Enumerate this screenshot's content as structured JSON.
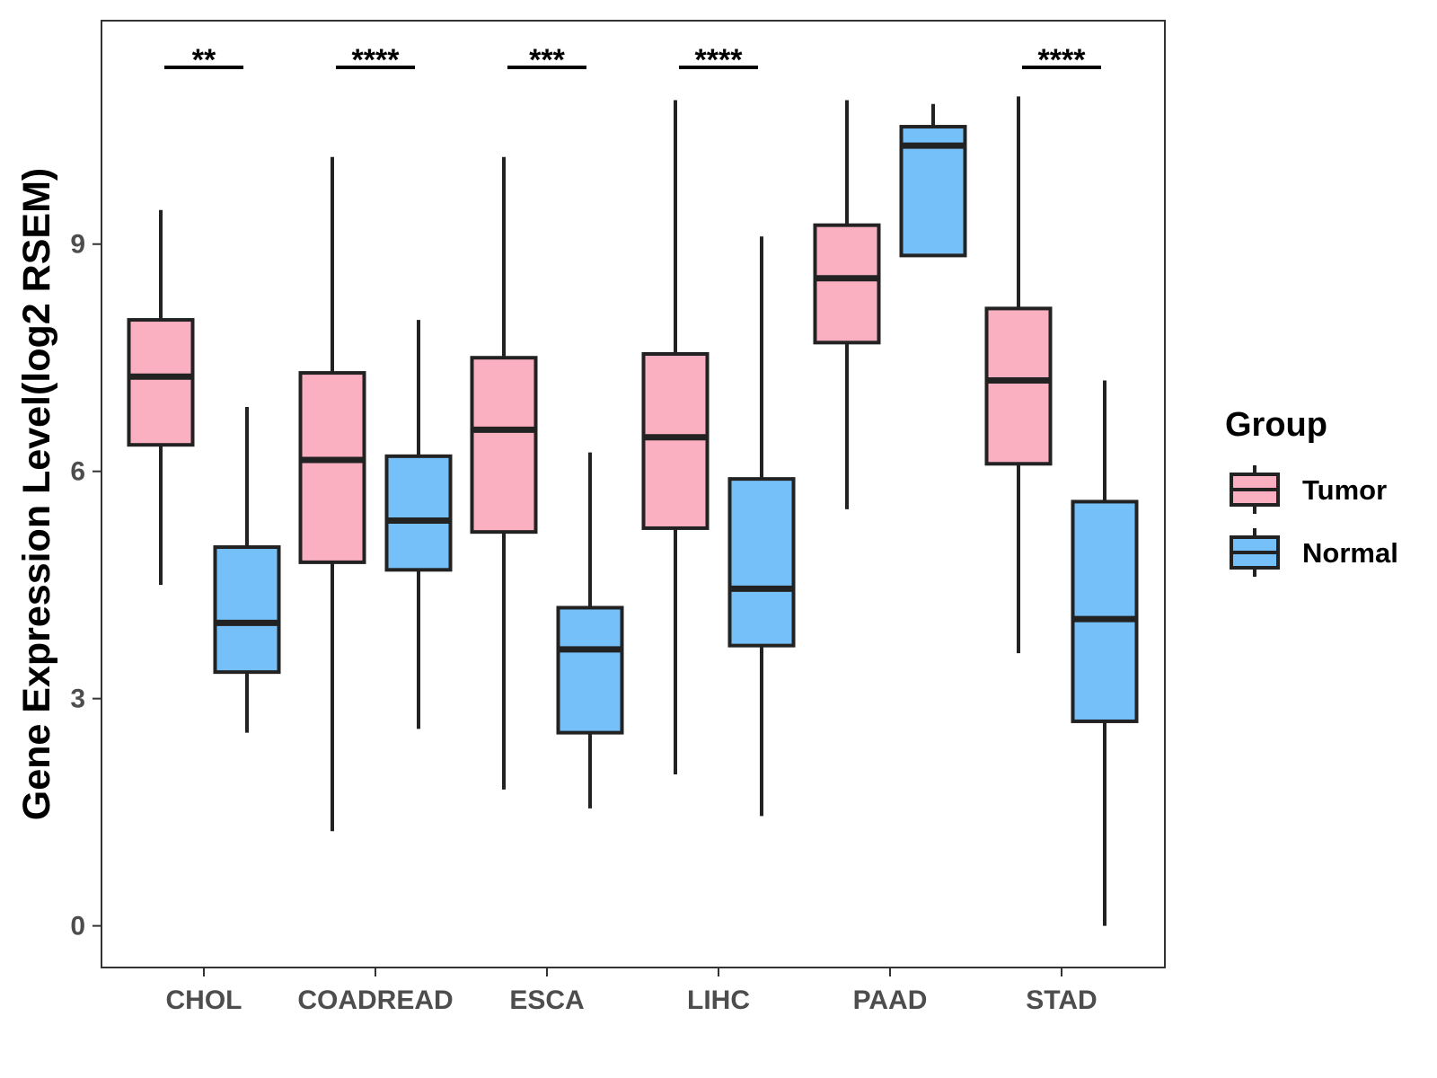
{
  "chart_data": {
    "type": "boxplot",
    "title": "",
    "xlabel": "",
    "ylabel": "Gene Expression Level(log2 RSEM)",
    "ylim": [
      -0.55,
      11.95
    ],
    "yticks": [
      0,
      3,
      6,
      9
    ],
    "grid": false,
    "legend": {
      "title": "Group",
      "position": "right"
    },
    "categories": [
      "CHOL",
      "COADREAD",
      "ESCA",
      "LIHC",
      "PAAD",
      "STAD"
    ],
    "series": [
      {
        "name": "Tumor",
        "color": "#fbb0c1",
        "boxes": [
          {
            "whisker_low": 4.5,
            "q1": 6.35,
            "median": 7.25,
            "q3": 8.0,
            "whisker_high": 9.45
          },
          {
            "whisker_low": 1.25,
            "q1": 4.8,
            "median": 6.15,
            "q3": 7.3,
            "whisker_high": 10.15
          },
          {
            "whisker_low": 1.8,
            "q1": 5.2,
            "median": 6.55,
            "q3": 7.5,
            "whisker_high": 10.15
          },
          {
            "whisker_low": 2.0,
            "q1": 5.25,
            "median": 6.45,
            "q3": 7.55,
            "whisker_high": 10.9
          },
          {
            "whisker_low": 5.5,
            "q1": 7.7,
            "median": 8.55,
            "q3": 9.25,
            "whisker_high": 10.9
          },
          {
            "whisker_low": 3.6,
            "q1": 6.1,
            "median": 7.2,
            "q3": 8.15,
            "whisker_high": 10.95
          }
        ]
      },
      {
        "name": "Normal",
        "color": "#75c0f8",
        "boxes": [
          {
            "whisker_low": 2.55,
            "q1": 3.35,
            "median": 4.0,
            "q3": 5.0,
            "whisker_high": 6.85
          },
          {
            "whisker_low": 2.6,
            "q1": 4.7,
            "median": 5.35,
            "q3": 6.2,
            "whisker_high": 8.0
          },
          {
            "whisker_low": 1.55,
            "q1": 2.55,
            "median": 3.65,
            "q3": 4.2,
            "whisker_high": 6.25
          },
          {
            "whisker_low": 1.45,
            "q1": 3.7,
            "median": 4.45,
            "q3": 5.9,
            "whisker_high": 9.1
          },
          {
            "whisker_low": 8.85,
            "q1": 8.85,
            "median": 10.3,
            "q3": 10.55,
            "whisker_high": 10.85
          },
          {
            "whisker_low": 0.0,
            "q1": 2.7,
            "median": 4.05,
            "q3": 5.6,
            "whisker_high": 7.2
          }
        ]
      }
    ],
    "significance": [
      {
        "category": "CHOL",
        "label": "**"
      },
      {
        "category": "COADREAD",
        "label": "****"
      },
      {
        "category": "ESCA",
        "label": "***"
      },
      {
        "category": "LIHC",
        "label": "****"
      },
      {
        "category": "PAAD",
        "label": ""
      },
      {
        "category": "STAD",
        "label": "****"
      }
    ]
  }
}
